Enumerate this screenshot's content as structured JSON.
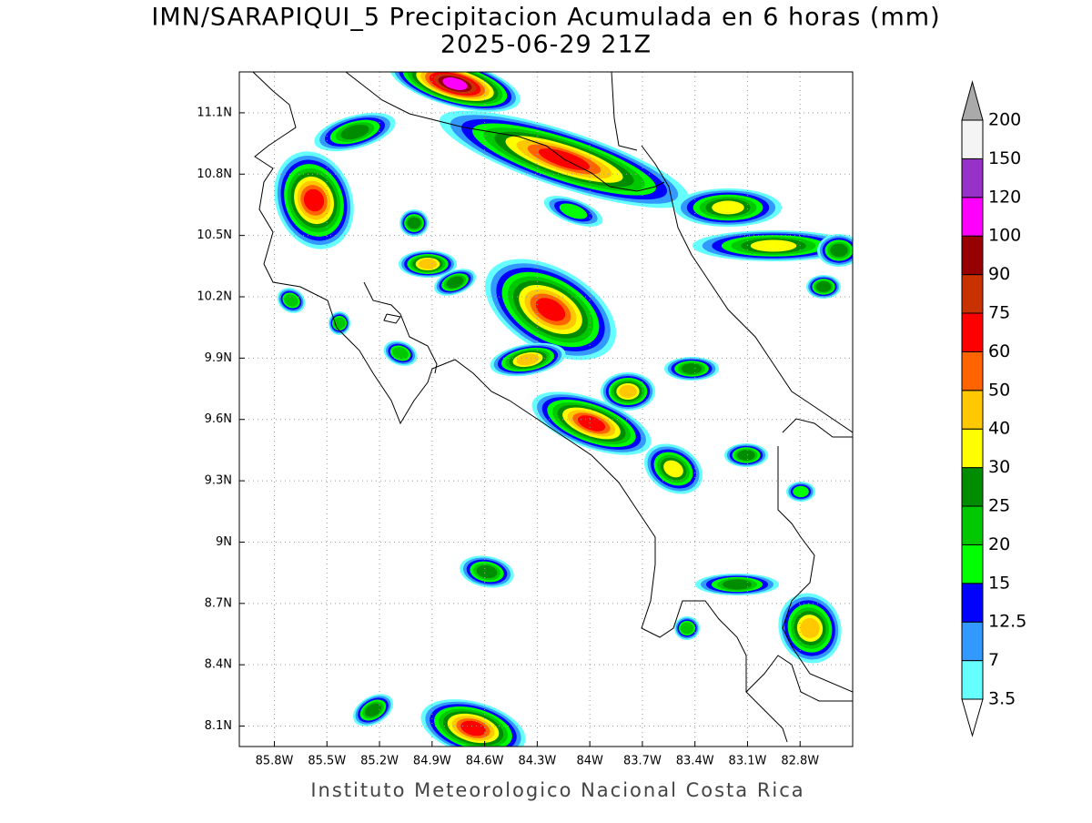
{
  "title": "IMN/SARAPIQUI_5 Precipitacion Acumulada en 6 horas (mm)",
  "subtitle": "2025-06-29 21Z",
  "map": {
    "lonlim": [
      -86.0,
      -82.5
    ],
    "latlim": [
      8.0,
      11.3
    ],
    "grid": true,
    "lon_ticks": [
      {
        "value": -85.8,
        "label": "85.8W"
      },
      {
        "value": -85.5,
        "label": "85.5W"
      },
      {
        "value": -85.2,
        "label": "85.2W"
      },
      {
        "value": -84.9,
        "label": "84.9W"
      },
      {
        "value": -84.6,
        "label": "84.6W"
      },
      {
        "value": -84.3,
        "label": "84.3W"
      },
      {
        "value": -84.0,
        "label": "84W"
      },
      {
        "value": -83.7,
        "label": "83.7W"
      },
      {
        "value": -83.4,
        "label": "83.4W"
      },
      {
        "value": -83.1,
        "label": "83.1W"
      },
      {
        "value": -82.8,
        "label": "82.8W"
      }
    ],
    "lat_ticks": [
      {
        "value": 11.1,
        "label": "11.1N"
      },
      {
        "value": 10.8,
        "label": "10.8N"
      },
      {
        "value": 10.5,
        "label": "10.5N"
      },
      {
        "value": 10.2,
        "label": "10.2N"
      },
      {
        "value": 9.9,
        "label": "9.9N"
      },
      {
        "value": 9.6,
        "label": "9.6N"
      },
      {
        "value": 9.3,
        "label": "9.3N"
      },
      {
        "value": 9.0,
        "label": "9N"
      },
      {
        "value": 8.7,
        "label": "8.7N"
      },
      {
        "value": 8.4,
        "label": "8.4N"
      },
      {
        "value": 8.1,
        "label": "8.1N"
      }
    ]
  },
  "colorbar": {
    "levels": [
      3.5,
      7,
      12.5,
      15,
      20,
      25,
      30,
      40,
      50,
      60,
      75,
      90,
      100,
      120,
      150,
      200
    ],
    "colors": [
      "#ffffff",
      "#66ffff",
      "#3399ff",
      "#0000ff",
      "#00ff00",
      "#00c800",
      "#008c00",
      "#ffff00",
      "#ffc800",
      "#ff6400",
      "#ff0000",
      "#c83200",
      "#960000",
      "#ff00ff",
      "#9632c8",
      "#f4f4f4",
      "#aaaaaa"
    ]
  },
  "footer": "Instituto Meteorologico Nacional Costa Rica"
}
